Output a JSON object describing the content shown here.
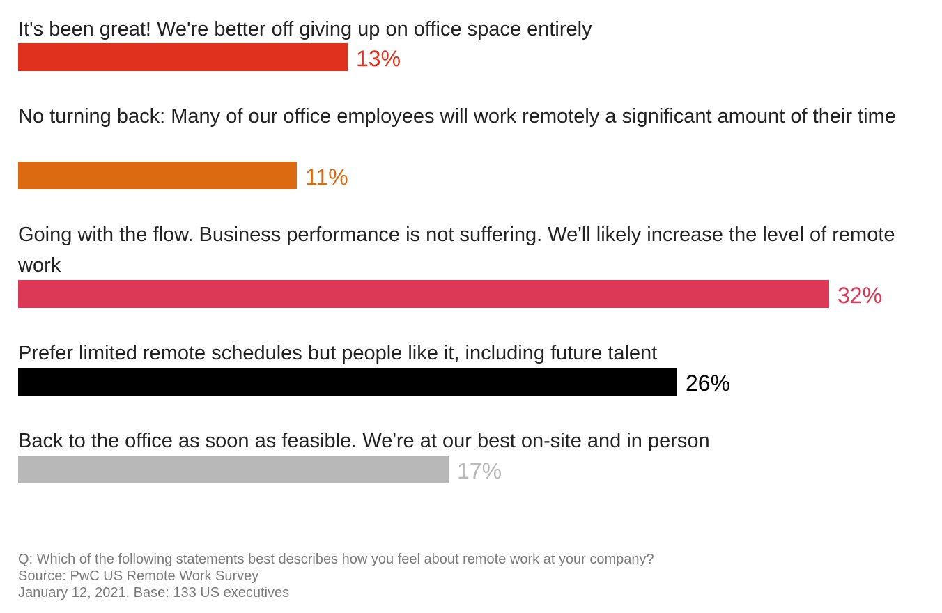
{
  "chart_data": {
    "type": "bar",
    "orientation": "horizontal",
    "categories": [
      "It's been great! We're better off giving up on office space entirely",
      "No turning back: Many of our office employees will work remotely a significant amount of their time",
      "Going with the flow. Business performance is not suffering. We'll likely increase the level of remote work",
      "Prefer limited remote schedules but people like it, including future talent",
      "Back to the office as soon as feasible. We're at our best on-site and in person"
    ],
    "values": [
      13,
      11,
      32,
      26,
      17
    ],
    "value_labels": [
      "13%",
      "11%",
      "32%",
      "26%",
      "17%"
    ],
    "colors": [
      "#e0301e",
      "#db6a10",
      "#db3956",
      "#000000",
      "#b8b8b8"
    ],
    "label_colors": [
      "#e0301e",
      "#db6a10",
      "#db3956",
      "#000000",
      "#b8b8b8"
    ],
    "xlim": [
      0,
      34
    ],
    "grid": false,
    "legend": "none"
  },
  "footnotes": {
    "question": "Q: Which of the following statements best describes how you feel about remote work at your company?",
    "source": "Source: PwC US Remote Work Survey",
    "date_base": "January 12, 2021. Base: 133 US executives"
  }
}
